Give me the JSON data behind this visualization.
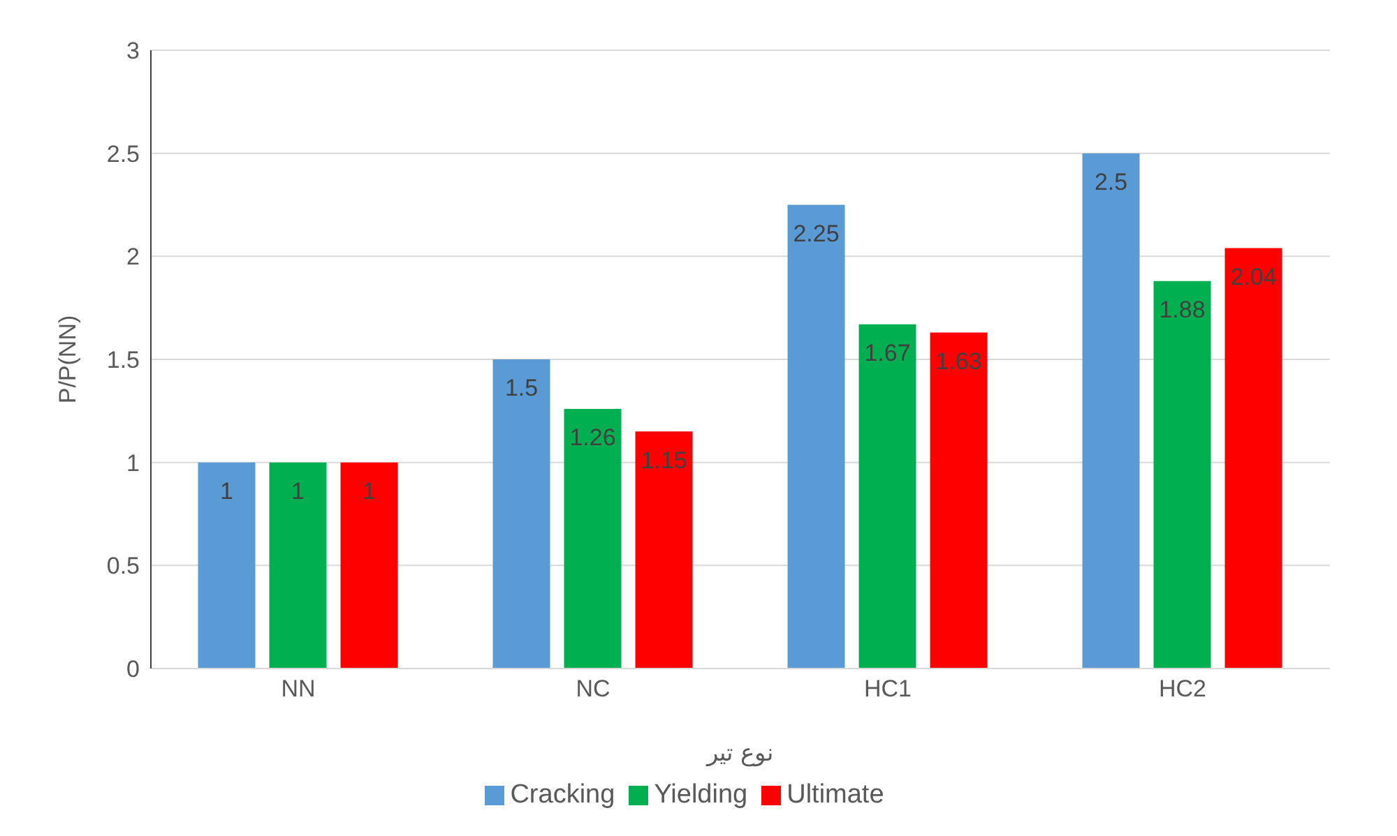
{
  "chart_data": {
    "type": "bar",
    "categories": [
      "NN",
      "NC",
      "HC1",
      "HC2"
    ],
    "series": [
      {
        "name": "Cracking",
        "color": "#5b9bd5",
        "values": [
          1,
          1.5,
          2.25,
          2.5
        ]
      },
      {
        "name": "Yielding",
        "color": "#00b050",
        "values": [
          1,
          1.26,
          1.67,
          1.88
        ]
      },
      {
        "name": "Ultimate",
        "color": "#ff0000",
        "values": [
          1,
          1.15,
          1.63,
          2.04
        ]
      }
    ],
    "xlabel": "نوع تیر",
    "ylabel": "P/P(NN)",
    "ylim": [
      0,
      3
    ],
    "yticks": [
      0,
      0.5,
      1,
      1.5,
      2,
      2.5,
      3
    ],
    "grid": "y",
    "legend": "bottom",
    "data_labels": true
  }
}
